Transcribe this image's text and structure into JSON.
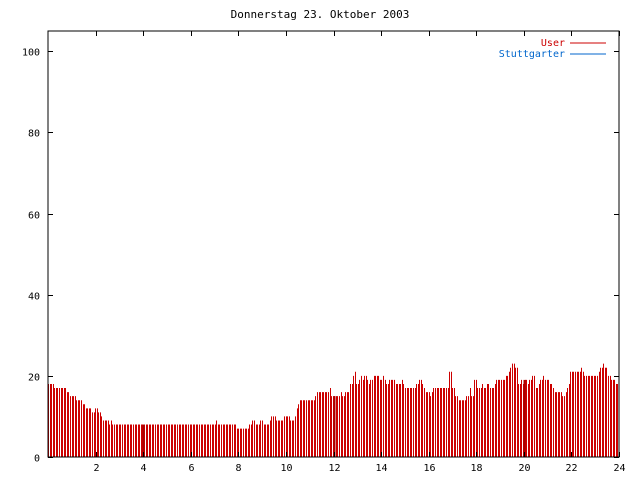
{
  "chart_data": {
    "type": "bar",
    "title": "Donnerstag 23. Oktober 2003",
    "xlabel": "",
    "ylabel": "",
    "xlim": [
      0,
      24
    ],
    "ylim": [
      0,
      105
    ],
    "xticks": [
      "2",
      "4",
      "6",
      "8",
      "10",
      "12",
      "14",
      "16",
      "18",
      "20",
      "22",
      "24"
    ],
    "yticks": [
      "0",
      "20",
      "40",
      "60",
      "80",
      "100"
    ],
    "legend": "top-right",
    "series": [
      {
        "name": "User",
        "color": "#cc0000",
        "values": [
          18,
          18,
          18,
          18,
          17,
          17,
          17,
          17,
          17,
          17,
          17,
          17,
          16,
          16,
          15,
          15,
          15,
          15,
          14,
          14,
          14,
          14,
          13,
          13,
          12,
          12,
          12,
          12,
          11,
          11,
          12,
          12,
          11,
          11,
          10,
          9,
          9,
          9,
          9,
          8,
          9,
          8,
          8,
          8,
          8,
          8,
          8,
          8,
          8,
          8,
          8,
          8,
          8,
          8,
          8,
          8,
          8,
          8,
          8,
          8,
          8,
          8,
          8,
          8,
          8,
          8,
          8,
          8,
          8,
          8,
          8,
          8,
          8,
          8,
          8,
          8,
          8,
          8,
          8,
          8,
          8,
          8,
          8,
          8,
          8,
          8,
          8,
          8,
          8,
          8,
          8,
          8,
          8,
          8,
          8,
          8,
          8,
          8,
          8,
          8,
          8,
          8,
          8,
          8,
          8,
          8,
          8,
          9,
          8,
          8,
          8,
          8,
          8,
          8,
          8,
          8,
          8,
          8,
          8,
          8,
          7,
          7,
          7,
          7,
          7,
          7,
          7,
          7,
          8,
          8,
          9,
          9,
          8,
          8,
          8,
          9,
          9,
          8,
          8,
          8,
          8,
          9,
          10,
          10,
          10,
          9,
          9,
          9,
          9,
          9,
          10,
          10,
          10,
          10,
          9,
          9,
          9,
          10,
          12,
          13,
          14,
          14,
          14,
          14,
          14,
          14,
          14,
          14,
          14,
          14,
          15,
          16,
          16,
          16,
          16,
          16,
          16,
          16,
          16,
          17,
          15,
          15,
          15,
          15,
          15,
          15,
          16,
          15,
          15,
          16,
          16,
          16,
          18,
          18,
          20,
          21,
          18,
          18,
          19,
          20,
          19,
          20,
          20,
          19,
          18,
          19,
          19,
          20,
          20,
          20,
          20,
          19,
          19,
          20,
          19,
          18,
          18,
          19,
          19,
          19,
          19,
          18,
          18,
          18,
          18,
          19,
          18,
          17,
          17,
          17,
          17,
          17,
          17,
          17,
          18,
          18,
          19,
          19,
          18,
          17,
          16,
          16,
          16,
          15,
          16,
          17,
          17,
          17,
          17,
          17,
          17,
          17,
          17,
          17,
          17,
          21,
          21,
          17,
          17,
          15,
          15,
          14,
          14,
          14,
          14,
          14,
          15,
          15,
          17,
          15,
          15,
          19,
          19,
          17,
          17,
          17,
          18,
          17,
          17,
          18,
          18,
          17,
          17,
          17,
          18,
          19,
          19,
          19,
          19,
          19,
          19,
          20,
          20,
          21,
          22,
          23,
          23,
          22,
          22,
          18,
          18,
          19,
          18,
          19,
          19,
          18,
          19,
          19,
          20,
          20,
          17,
          17,
          18,
          19,
          19,
          20,
          19,
          19,
          19,
          18,
          18,
          17,
          16,
          16,
          16,
          16,
          16,
          15,
          15,
          16,
          17,
          18,
          21,
          21,
          21,
          21,
          21,
          21,
          21,
          22,
          21,
          20,
          20,
          20,
          20,
          20,
          20,
          20,
          20,
          20,
          21,
          22,
          22,
          23,
          22,
          22,
          20,
          20,
          19,
          19,
          19,
          18,
          18
        ]
      },
      {
        "name": "Stuttgarter",
        "color": "#0066cc",
        "values": []
      }
    ],
    "highlight_x": [
      4,
      12,
      20
    ]
  }
}
